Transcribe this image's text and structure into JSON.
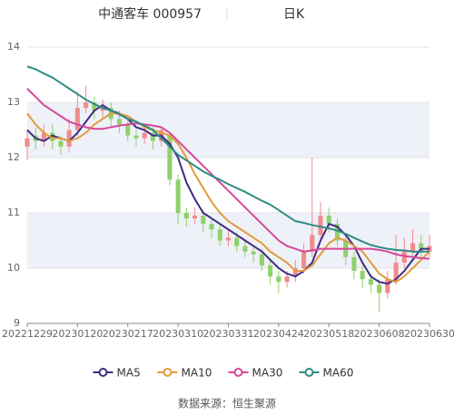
{
  "chart_data": {
    "type": "candlestick",
    "title": "中通客车 000957",
    "subtitle": "日K",
    "source": "数据来源：恒生聚源",
    "categories": [
      "20221229",
      null,
      null,
      null,
      null,
      null,
      "20230120",
      null,
      null,
      null,
      null,
      null,
      "20230217",
      null,
      null,
      null,
      null,
      null,
      "20230310",
      null,
      null,
      null,
      null,
      null,
      "20230331",
      null,
      null,
      null,
      null,
      null,
      "20230424",
      null,
      null,
      null,
      null,
      null,
      "20230518",
      null,
      null,
      null,
      null,
      null,
      "20230608",
      null,
      null,
      null,
      null,
      null,
      "20230630"
    ],
    "open": [
      12.2,
      12.4,
      12.3,
      12.45,
      12.3,
      12.2,
      12.5,
      12.9,
      13.0,
      12.85,
      12.9,
      12.7,
      12.6,
      12.4,
      12.35,
      12.45,
      12.3,
      12.4,
      11.6,
      11.0,
      10.9,
      10.95,
      10.8,
      10.7,
      10.5,
      10.55,
      10.4,
      10.3,
      10.25,
      10.05,
      9.85,
      9.75,
      9.85,
      10.0,
      10.3,
      10.6,
      10.95,
      10.8,
      10.5,
      10.2,
      9.95,
      9.8,
      9.7,
      9.55,
      9.8,
      10.1,
      10.3,
      10.45,
      10.3
    ],
    "close": [
      12.35,
      12.3,
      12.45,
      12.3,
      12.2,
      12.5,
      12.9,
      13.0,
      12.85,
      12.9,
      12.7,
      12.6,
      12.4,
      12.35,
      12.45,
      12.3,
      12.5,
      11.6,
      11.0,
      10.9,
      10.95,
      10.8,
      10.7,
      10.5,
      10.55,
      10.4,
      10.3,
      10.25,
      10.05,
      9.85,
      9.75,
      9.85,
      10.0,
      10.3,
      10.6,
      10.95,
      10.8,
      10.5,
      10.2,
      9.95,
      9.8,
      9.7,
      9.55,
      9.8,
      10.1,
      10.3,
      10.45,
      10.3,
      10.4
    ],
    "low": [
      11.95,
      12.15,
      12.2,
      12.15,
      12.05,
      12.1,
      12.4,
      12.8,
      12.7,
      12.7,
      12.55,
      12.45,
      12.3,
      12.2,
      12.25,
      12.15,
      12.2,
      11.5,
      10.8,
      10.75,
      10.8,
      10.65,
      10.55,
      10.4,
      10.4,
      10.3,
      10.2,
      10.1,
      9.95,
      9.7,
      9.55,
      9.65,
      9.75,
      9.9,
      10.2,
      10.5,
      10.65,
      10.4,
      10.05,
      9.8,
      9.65,
      9.55,
      9.2,
      9.45,
      9.7,
      10.0,
      10.2,
      10.15,
      10.2
    ],
    "high": [
      12.5,
      12.55,
      12.6,
      12.6,
      12.4,
      12.7,
      13.2,
      13.3,
      13.1,
      13.05,
      13.0,
      12.85,
      12.7,
      12.5,
      12.6,
      12.55,
      12.55,
      12.45,
      11.7,
      11.1,
      11.1,
      11.05,
      10.9,
      10.8,
      10.7,
      10.65,
      10.5,
      10.4,
      10.35,
      10.15,
      9.95,
      9.95,
      10.15,
      10.45,
      12.0,
      11.2,
      11.1,
      10.9,
      10.6,
      10.3,
      10.05,
      9.9,
      9.8,
      9.95,
      10.6,
      10.55,
      10.7,
      10.6,
      10.6
    ],
    "up_color": "#f28b8b",
    "down_color": "#8fd16a",
    "series": [
      {
        "name": "MA5",
        "color": "#3f2b82",
        "values": [
          12.5,
          12.35,
          12.3,
          12.4,
          12.35,
          12.3,
          12.45,
          12.65,
          12.85,
          12.95,
          12.85,
          12.8,
          12.7,
          12.55,
          12.5,
          12.4,
          12.4,
          12.25,
          12.0,
          11.55,
          11.25,
          11.0,
          10.9,
          10.8,
          10.7,
          10.6,
          10.5,
          10.4,
          10.3,
          10.15,
          10.0,
          9.9,
          9.85,
          9.95,
          10.1,
          10.5,
          10.8,
          10.75,
          10.6,
          10.4,
          10.1,
          9.85,
          9.75,
          9.72,
          9.8,
          9.95,
          10.15,
          10.35,
          10.35
        ]
      },
      {
        "name": "MA10",
        "color": "#e39a3c",
        "values": [
          12.8,
          12.6,
          12.45,
          12.35,
          12.35,
          12.3,
          12.35,
          12.45,
          12.6,
          12.7,
          12.8,
          12.8,
          12.75,
          12.65,
          12.55,
          12.5,
          12.45,
          12.4,
          12.25,
          12.0,
          11.7,
          11.45,
          11.2,
          11.0,
          10.85,
          10.75,
          10.65,
          10.55,
          10.45,
          10.3,
          10.2,
          10.1,
          9.95,
          9.95,
          10.05,
          10.25,
          10.45,
          10.55,
          10.5,
          10.4,
          10.3,
          10.1,
          9.9,
          9.8,
          9.75,
          9.85,
          10.0,
          10.15,
          10.3
        ]
      },
      {
        "name": "MA30",
        "color": "#d6479b",
        "values": [
          13.25,
          13.1,
          12.95,
          12.85,
          12.75,
          12.65,
          12.6,
          12.55,
          12.52,
          12.52,
          12.55,
          12.58,
          12.6,
          12.62,
          12.6,
          12.58,
          12.55,
          12.45,
          12.3,
          12.15,
          12.0,
          11.85,
          11.7,
          11.55,
          11.4,
          11.25,
          11.1,
          10.95,
          10.8,
          10.65,
          10.5,
          10.4,
          10.35,
          10.3,
          10.32,
          10.35,
          10.35,
          10.35,
          10.35,
          10.35,
          10.35,
          10.35,
          10.33,
          10.3,
          10.25,
          10.22,
          10.2,
          10.18,
          10.17
        ]
      },
      {
        "name": "MA60",
        "color": "#2e8b86",
        "values": [
          13.65,
          13.6,
          13.52,
          13.45,
          13.35,
          13.25,
          13.15,
          13.05,
          12.97,
          12.9,
          12.85,
          12.78,
          12.7,
          12.65,
          12.58,
          12.5,
          12.35,
          12.2,
          12.05,
          11.95,
          11.85,
          11.75,
          11.67,
          11.6,
          11.52,
          11.45,
          11.38,
          11.3,
          11.22,
          11.15,
          11.05,
          10.95,
          10.85,
          10.82,
          10.78,
          10.75,
          10.72,
          10.68,
          10.62,
          10.55,
          10.48,
          10.42,
          10.38,
          10.35,
          10.33,
          10.32,
          10.3,
          10.3,
          10.3
        ]
      }
    ],
    "ylim": [
      9,
      14
    ],
    "yticks": [
      9,
      10,
      11,
      12,
      13,
      14
    ],
    "grid": true
  }
}
